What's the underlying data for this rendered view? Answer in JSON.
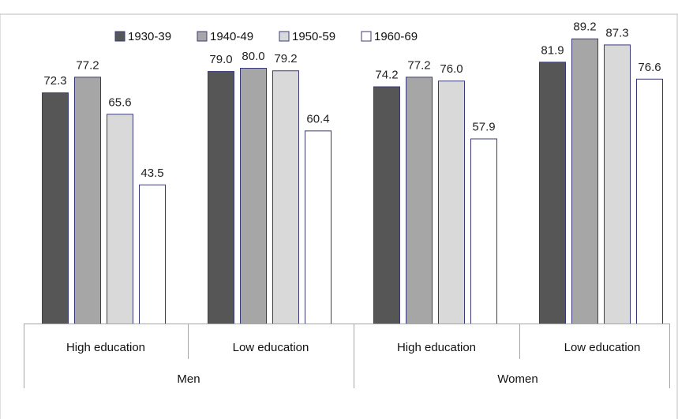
{
  "chart_data": {
    "type": "bar",
    "title": "",
    "xlabel": "",
    "ylabel": "",
    "ylim": [
      0,
      100
    ],
    "grid": false,
    "legend_position": "top",
    "group_labels": [
      "Men",
      "Women"
    ],
    "categories": [
      "High education",
      "Low education",
      "High education",
      "Low education"
    ],
    "series": [
      {
        "name": "1930-39",
        "values": [
          72.3,
          79.0,
          74.2,
          81.9
        ],
        "color": "#565656"
      },
      {
        "name": "1940-49",
        "values": [
          77.2,
          80.0,
          77.2,
          89.2
        ],
        "color": "#a6a6a6"
      },
      {
        "name": "1950-59",
        "values": [
          65.6,
          79.2,
          76.0,
          87.3
        ],
        "color": "#d9d9d9"
      },
      {
        "name": "1960-69",
        "values": [
          43.5,
          60.4,
          57.9,
          76.6
        ],
        "color": "#ffffff"
      }
    ],
    "value_labels": [
      [
        "72.3",
        "79.0",
        "74.2",
        "81.9"
      ],
      [
        "77.2",
        "80.0",
        "77.2",
        "89.2"
      ],
      [
        "65.6",
        "79.2",
        "76.0",
        "87.3"
      ],
      [
        "43.5",
        "60.4",
        "57.9",
        "76.6"
      ]
    ],
    "bar_border_color": "#3a3a7a",
    "axis_color": "#a6a6a6"
  }
}
